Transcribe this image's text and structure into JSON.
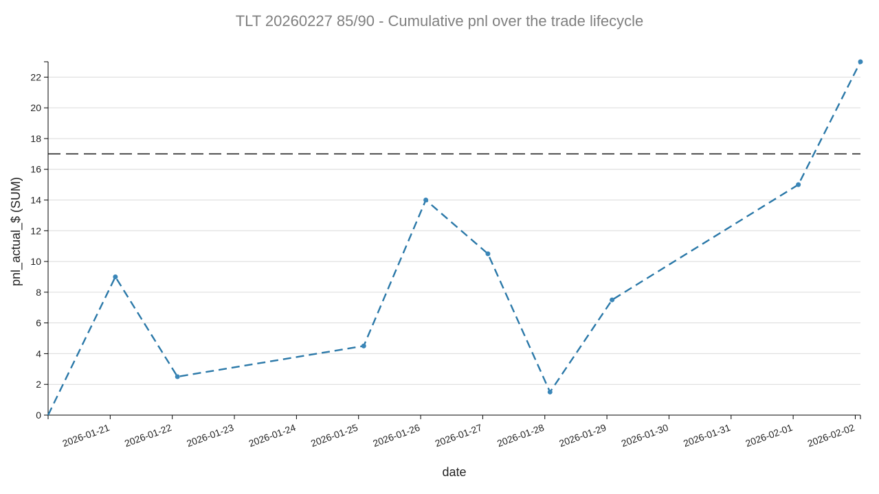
{
  "chart_data": {
    "type": "line",
    "title": "TLT 20260227 85/90 - Cumulative pnl over the trade lifecycle",
    "xlabel": "date",
    "ylabel": "pnl_actual_$ (SUM)",
    "x_type": "date",
    "xlim": [
      "2026-01-20T00:00",
      "2026-02-02T02:00"
    ],
    "ylim": [
      0,
      23
    ],
    "x_ticks": [
      "2026-01-21",
      "2026-01-22",
      "2026-01-23",
      "2026-01-24",
      "2026-01-25",
      "2026-01-26",
      "2026-01-27",
      "2026-01-28",
      "2026-01-29",
      "2026-01-30",
      "2026-01-31",
      "2026-02-01",
      "2026-02-02"
    ],
    "y_ticks": [
      0,
      2,
      4,
      6,
      8,
      10,
      12,
      14,
      16,
      18,
      20,
      22
    ],
    "grid": "horizontal",
    "series": [
      {
        "color": "#2a78a8",
        "line_style": "dashed",
        "markers": true,
        "points": [
          {
            "x": "2026-01-20T00:00",
            "y": 0
          },
          {
            "x": "2026-01-21T02:00",
            "y": 9
          },
          {
            "x": "2026-01-22T02:00",
            "y": 2.5
          },
          {
            "x": "2026-01-25T02:00",
            "y": 4.5
          },
          {
            "x": "2026-01-26T02:00",
            "y": 14
          },
          {
            "x": "2026-01-27T02:00",
            "y": 10.5
          },
          {
            "x": "2026-01-28T02:00",
            "y": 1.5
          },
          {
            "x": "2026-01-29T02:00",
            "y": 7.5
          },
          {
            "x": "2026-02-01T02:00",
            "y": 15
          },
          {
            "x": "2026-02-02T02:00",
            "y": 23
          }
        ]
      }
    ],
    "reference_lines": [
      {
        "orientation": "horizontal",
        "y": 17,
        "color": "#000000",
        "line_style": "dashed"
      }
    ]
  }
}
